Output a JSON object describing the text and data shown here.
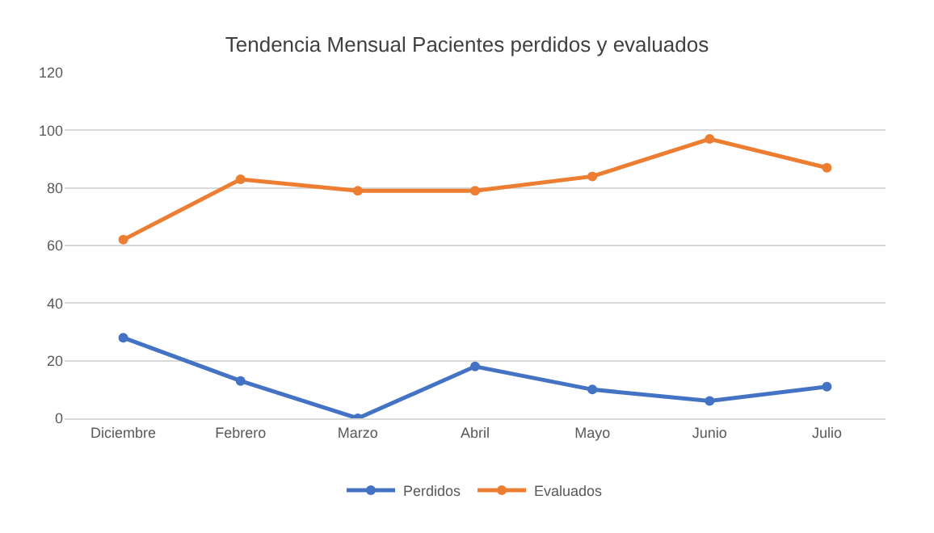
{
  "chart_data": {
    "type": "line",
    "title": "Tendencia Mensual Pacientes perdidos y evaluados",
    "categories": [
      "Diciembre",
      "Febrero",
      "Marzo",
      "Abril",
      "Mayo",
      "Junio",
      "Julio"
    ],
    "series": [
      {
        "name": "Perdidos",
        "color": "#4472c4",
        "values": [
          28,
          13,
          0,
          18,
          10,
          6,
          11
        ]
      },
      {
        "name": "Evaluados",
        "color": "#ed7d31",
        "values": [
          62,
          83,
          79,
          79,
          84,
          97,
          87
        ]
      }
    ],
    "ylim": [
      0,
      120
    ],
    "yticks": [
      0,
      20,
      40,
      60,
      80,
      100,
      120
    ],
    "grid": "y",
    "legend": "bottom",
    "marker": "circle",
    "line_style": "solid"
  }
}
